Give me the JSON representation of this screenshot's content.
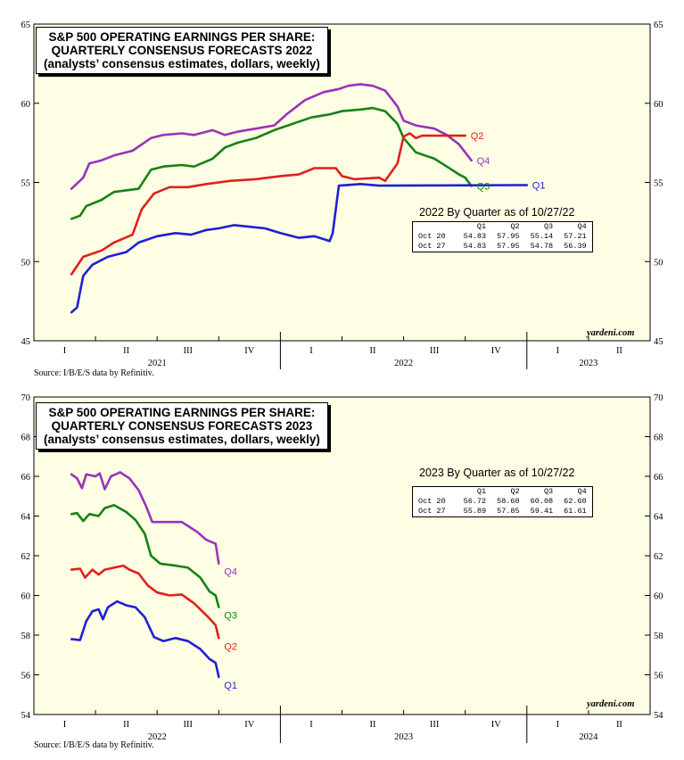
{
  "source_text": "Source: I/B/E/S data by Refinitiv.",
  "watermark": "yardeni.com",
  "colors": {
    "Q1": "#1f1fd6",
    "Q2": "#e0201a",
    "Q3": "#168216",
    "Q4": "#9933bb",
    "plot_bg": "#fefee4"
  },
  "chart_data": [
    {
      "type": "line",
      "title_lines": [
        "S&P 500 OPERATING EARNINGS PER SHARE:",
        "QUARTERLY CONSENSUS FORECASTS 2022",
        "(analysts’ consensus estimates, dollars, weekly)"
      ],
      "ylim": [
        45,
        65
      ],
      "yticks": [
        "45",
        "50",
        "55",
        "60",
        "65"
      ],
      "quarter_labels": [
        "I",
        "II",
        "III",
        "IV",
        "I",
        "II",
        "III",
        "IV",
        "I",
        "II"
      ],
      "year_labels": [
        {
          "label": "2021",
          "qstart": 0
        },
        {
          "label": "2022",
          "qstart": 4
        },
        {
          "label": "2023",
          "qstart": 8
        }
      ],
      "series": [
        {
          "name": "Q1",
          "points": [
            [
              0.61,
              46.8
            ],
            [
              0.7,
              47.1
            ],
            [
              0.8,
              49.1
            ],
            [
              0.95,
              49.8
            ],
            [
              1.2,
              50.3
            ],
            [
              1.5,
              50.6
            ],
            [
              1.7,
              51.2
            ],
            [
              2.0,
              51.6
            ],
            [
              2.3,
              51.8
            ],
            [
              2.55,
              51.7
            ],
            [
              2.8,
              52.0
            ],
            [
              3.0,
              52.1
            ],
            [
              3.25,
              52.3
            ],
            [
              3.5,
              52.2
            ],
            [
              3.75,
              52.1
            ],
            [
              4.0,
              51.8
            ],
            [
              4.3,
              51.5
            ],
            [
              4.55,
              51.6
            ],
            [
              4.8,
              51.3
            ],
            [
              4.85,
              51.8
            ],
            [
              4.95,
              54.8
            ],
            [
              5.3,
              54.9
            ],
            [
              5.6,
              54.8
            ],
            [
              8.0,
              54.83
            ]
          ]
        },
        {
          "name": "Q2",
          "points": [
            [
              0.61,
              49.2
            ],
            [
              0.8,
              50.3
            ],
            [
              1.1,
              50.7
            ],
            [
              1.3,
              51.2
            ],
            [
              1.6,
              51.7
            ],
            [
              1.75,
              53.3
            ],
            [
              1.95,
              54.3
            ],
            [
              2.2,
              54.7
            ],
            [
              2.5,
              54.7
            ],
            [
              2.8,
              54.9
            ],
            [
              3.2,
              55.1
            ],
            [
              3.6,
              55.2
            ],
            [
              4.0,
              55.4
            ],
            [
              4.3,
              55.5
            ],
            [
              4.55,
              55.9
            ],
            [
              4.9,
              55.9
            ],
            [
              5.0,
              55.4
            ],
            [
              5.2,
              55.2
            ],
            [
              5.6,
              55.3
            ],
            [
              5.7,
              55.1
            ],
            [
              5.9,
              56.2
            ],
            [
              6.0,
              57.9
            ],
            [
              6.1,
              58.1
            ],
            [
              6.2,
              57.8
            ],
            [
              6.3,
              57.95
            ],
            [
              7.0,
              57.95
            ]
          ]
        },
        {
          "name": "Q3",
          "points": [
            [
              0.61,
              52.7
            ],
            [
              0.75,
              52.9
            ],
            [
              0.85,
              53.5
            ],
            [
              1.1,
              53.9
            ],
            [
              1.3,
              54.4
            ],
            [
              1.7,
              54.6
            ],
            [
              1.9,
              55.8
            ],
            [
              2.1,
              56.0
            ],
            [
              2.4,
              56.1
            ],
            [
              2.6,
              56.0
            ],
            [
              2.9,
              56.5
            ],
            [
              3.1,
              57.2
            ],
            [
              3.3,
              57.5
            ],
            [
              3.6,
              57.8
            ],
            [
              3.9,
              58.3
            ],
            [
              4.2,
              58.7
            ],
            [
              4.5,
              59.1
            ],
            [
              4.8,
              59.3
            ],
            [
              5.0,
              59.5
            ],
            [
              5.3,
              59.6
            ],
            [
              5.5,
              59.7
            ],
            [
              5.7,
              59.5
            ],
            [
              5.9,
              58.7
            ],
            [
              6.0,
              57.8
            ],
            [
              6.2,
              56.9
            ],
            [
              6.5,
              56.5
            ],
            [
              6.7,
              56.0
            ],
            [
              6.9,
              55.5
            ],
            [
              7.0,
              55.3
            ],
            [
              7.1,
              54.78
            ]
          ]
        },
        {
          "name": "Q4",
          "points": [
            [
              0.61,
              54.6
            ],
            [
              0.8,
              55.3
            ],
            [
              0.9,
              56.2
            ],
            [
              1.1,
              56.4
            ],
            [
              1.3,
              56.7
            ],
            [
              1.6,
              57.0
            ],
            [
              1.9,
              57.8
            ],
            [
              2.1,
              58.0
            ],
            [
              2.4,
              58.1
            ],
            [
              2.6,
              58.0
            ],
            [
              2.9,
              58.3
            ],
            [
              3.1,
              58.0
            ],
            [
              3.3,
              58.2
            ],
            [
              3.6,
              58.4
            ],
            [
              3.9,
              58.6
            ],
            [
              4.1,
              59.3
            ],
            [
              4.4,
              60.2
            ],
            [
              4.7,
              60.7
            ],
            [
              4.95,
              60.9
            ],
            [
              5.1,
              61.1
            ],
            [
              5.3,
              61.2
            ],
            [
              5.5,
              61.1
            ],
            [
              5.7,
              60.8
            ],
            [
              5.9,
              59.8
            ],
            [
              6.0,
              58.9
            ],
            [
              6.2,
              58.6
            ],
            [
              6.5,
              58.4
            ],
            [
              6.7,
              58.0
            ],
            [
              6.9,
              57.4
            ],
            [
              7.1,
              56.39
            ]
          ]
        }
      ],
      "table": {
        "title": "2022 By Quarter as of 10/27/22",
        "headers": [
          "",
          "Q1",
          "Q2",
          "Q3",
          "Q4"
        ],
        "rows": [
          [
            "Oct 20",
            "54.83",
            "57.95",
            "55.14",
            "57.21"
          ],
          [
            "Oct 27",
            "54.83",
            "57.95",
            "54.78",
            "56.39"
          ]
        ]
      }
    },
    {
      "type": "line",
      "title_lines": [
        "S&P 500 OPERATING EARNINGS PER SHARE:",
        "QUARTERLY CONSENSUS FORECASTS 2023",
        "(analysts’ consensus estimates, dollars, weekly)"
      ],
      "ylim": [
        54,
        70
      ],
      "yticks": [
        "54",
        "56",
        "58",
        "60",
        "62",
        "64",
        "66",
        "68",
        "70"
      ],
      "quarter_labels": [
        "I",
        "II",
        "III",
        "IV",
        "I",
        "II",
        "III",
        "IV",
        "I",
        "II"
      ],
      "year_labels": [
        {
          "label": "2022",
          "qstart": 0
        },
        {
          "label": "2023",
          "qstart": 4
        },
        {
          "label": "2024",
          "qstart": 8
        }
      ],
      "series": [
        {
          "name": "Q1",
          "points": [
            [
              0.61,
              57.8
            ],
            [
              0.75,
              57.75
            ],
            [
              0.85,
              58.7
            ],
            [
              0.95,
              59.2
            ],
            [
              1.05,
              59.3
            ],
            [
              1.12,
              58.8
            ],
            [
              1.2,
              59.4
            ],
            [
              1.35,
              59.7
            ],
            [
              1.5,
              59.5
            ],
            [
              1.65,
              59.4
            ],
            [
              1.8,
              58.9
            ],
            [
              1.95,
              57.9
            ],
            [
              2.1,
              57.7
            ],
            [
              2.3,
              57.85
            ],
            [
              2.5,
              57.7
            ],
            [
              2.7,
              57.3
            ],
            [
              2.85,
              56.8
            ],
            [
              2.95,
              56.6
            ],
            [
              3.0,
              55.89
            ]
          ]
        },
        {
          "name": "Q2",
          "points": [
            [
              0.61,
              61.3
            ],
            [
              0.75,
              61.35
            ],
            [
              0.83,
              60.9
            ],
            [
              0.95,
              61.3
            ],
            [
              1.05,
              61.05
            ],
            [
              1.15,
              61.3
            ],
            [
              1.3,
              61.4
            ],
            [
              1.45,
              61.5
            ],
            [
              1.55,
              61.3
            ],
            [
              1.7,
              61.1
            ],
            [
              1.85,
              60.5
            ],
            [
              2.0,
              60.15
            ],
            [
              2.2,
              60.0
            ],
            [
              2.4,
              60.05
            ],
            [
              2.6,
              59.6
            ],
            [
              2.8,
              59.0
            ],
            [
              2.95,
              58.5
            ],
            [
              3.0,
              57.85
            ]
          ]
        },
        {
          "name": "Q3",
          "points": [
            [
              0.61,
              64.1
            ],
            [
              0.7,
              64.15
            ],
            [
              0.8,
              63.75
            ],
            [
              0.9,
              64.1
            ],
            [
              1.05,
              64.0
            ],
            [
              1.15,
              64.4
            ],
            [
              1.3,
              64.55
            ],
            [
              1.5,
              64.2
            ],
            [
              1.65,
              63.8
            ],
            [
              1.8,
              63.1
            ],
            [
              1.9,
              62.0
            ],
            [
              2.05,
              61.6
            ],
            [
              2.3,
              61.5
            ],
            [
              2.5,
              61.4
            ],
            [
              2.7,
              60.9
            ],
            [
              2.85,
              60.2
            ],
            [
              2.95,
              60.0
            ],
            [
              3.0,
              59.41
            ]
          ]
        },
        {
          "name": "Q4",
          "points": [
            [
              0.61,
              66.1
            ],
            [
              0.7,
              65.9
            ],
            [
              0.78,
              65.4
            ],
            [
              0.85,
              66.1
            ],
            [
              1.0,
              66.0
            ],
            [
              1.07,
              66.15
            ],
            [
              1.15,
              65.35
            ],
            [
              1.25,
              66.0
            ],
            [
              1.4,
              66.2
            ],
            [
              1.55,
              65.9
            ],
            [
              1.7,
              65.3
            ],
            [
              1.82,
              64.5
            ],
            [
              1.92,
              63.7
            ],
            [
              2.1,
              63.7
            ],
            [
              2.4,
              63.7
            ],
            [
              2.5,
              63.5
            ],
            [
              2.65,
              63.2
            ],
            [
              2.8,
              62.8
            ],
            [
              2.95,
              62.6
            ],
            [
              3.0,
              61.61
            ]
          ]
        }
      ],
      "table": {
        "title": "2023 By Quarter as of 10/27/22",
        "headers": [
          "",
          "Q1",
          "Q2",
          "Q3",
          "Q4"
        ],
        "rows": [
          [
            "Oct 20",
            "56.72",
            "58.60",
            "60.08",
            "62.60"
          ],
          [
            "Oct 27",
            "55.89",
            "57.85",
            "59.41",
            "61.61"
          ]
        ]
      }
    }
  ]
}
